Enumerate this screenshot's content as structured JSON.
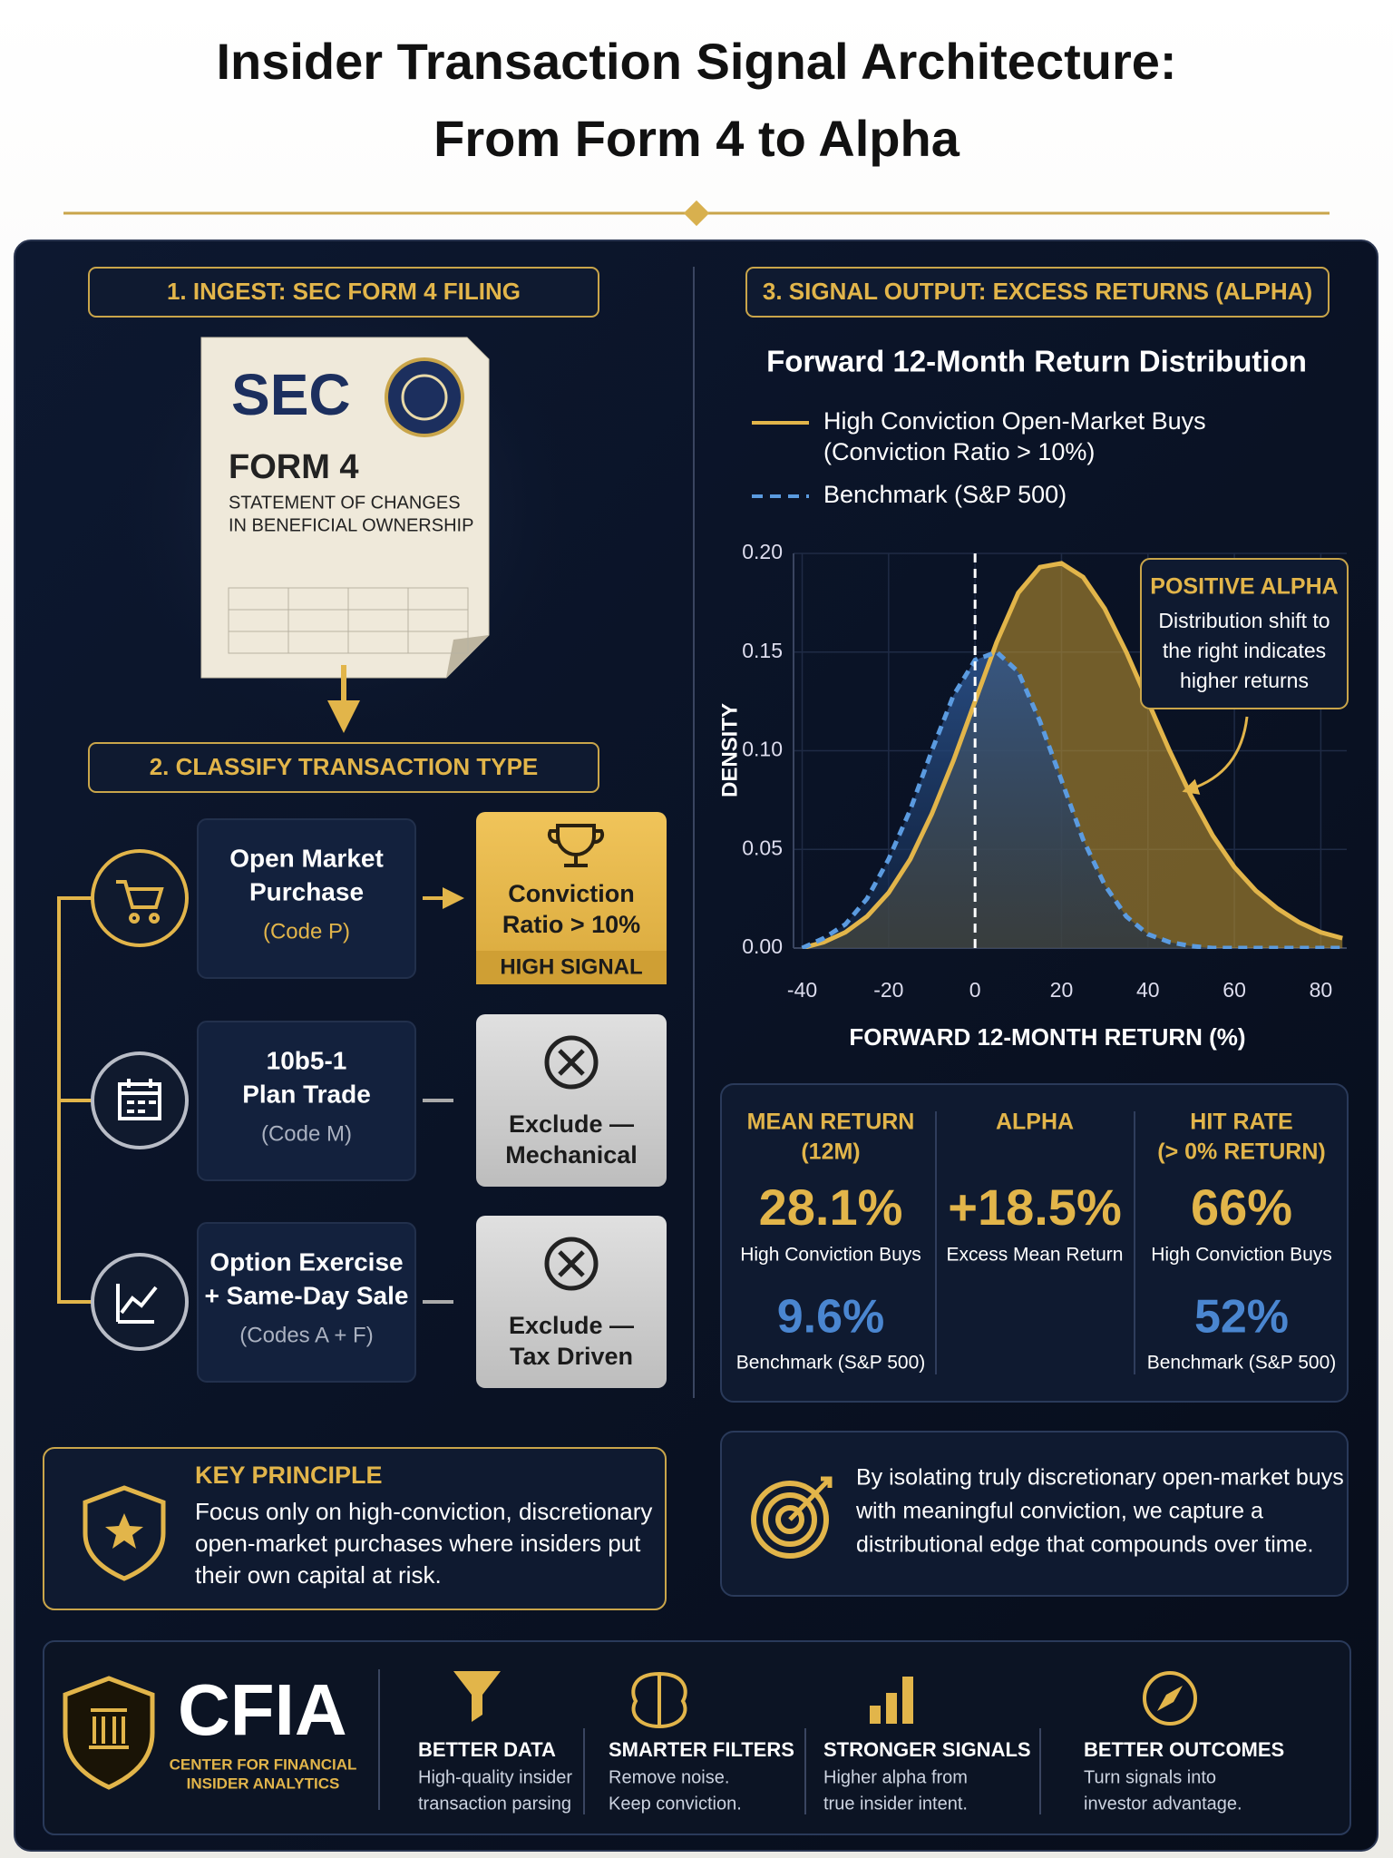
{
  "header": {
    "title": [
      "Insider Transaction Signal Architecture:",
      "From Form 4 to Alpha"
    ]
  },
  "ingest": {
    "heading": "1. INGEST: SEC FORM 4 FILING",
    "doc": {
      "agency": "SEC",
      "form": "FORM 4",
      "subtitle": [
        "STATEMENT OF CHANGES",
        "IN BENEFICIAL OWNERSHIP"
      ]
    }
  },
  "classify": {
    "heading": "2. CLASSIFY TRANSACTION TYPE",
    "rows": [
      {
        "name": [
          "Open Market",
          "Purchase"
        ],
        "code": "(Code P)",
        "result": [
          "Conviction",
          "Ratio > 10%"
        ],
        "tag": "HIGH SIGNAL"
      },
      {
        "name": [
          "10b5-1",
          "Plan Trade"
        ],
        "code": "(Code M)",
        "result": [
          "Exclude —",
          "Mechanical"
        ]
      },
      {
        "name": [
          "Option Exercise",
          "+ Same-Day Sale"
        ],
        "code": "(Codes A + F)",
        "result": [
          "Exclude —",
          "Tax Driven"
        ]
      }
    ]
  },
  "principle": {
    "title": "KEY PRINCIPLE",
    "text": [
      "Focus only on high-conviction, discretionary",
      "open-market purchases where insiders put",
      "their own capital at risk."
    ]
  },
  "output": {
    "heading": "3. SIGNAL OUTPUT: EXCESS RETURNS (ALPHA)"
  },
  "chart_data": {
    "type": "line",
    "title": "Forward 12-Month Return Distribution",
    "x": [
      -40,
      -35,
      -30,
      -25,
      -20,
      -15,
      -10,
      -5,
      0,
      5,
      10,
      15,
      20,
      25,
      30,
      35,
      40,
      45,
      50,
      55,
      60,
      65,
      70,
      75,
      80,
      85
    ],
    "series": [
      {
        "name": "High Conviction Open-Market Buys",
        "note": "(Conviction Ratio > 10%)",
        "color": "#e2b54a",
        "style": "solid",
        "values": [
          0.0,
          0.003,
          0.008,
          0.016,
          0.028,
          0.045,
          0.068,
          0.095,
          0.125,
          0.155,
          0.18,
          0.193,
          0.195,
          0.188,
          0.172,
          0.15,
          0.125,
          0.1,
          0.077,
          0.057,
          0.041,
          0.029,
          0.02,
          0.013,
          0.008,
          0.005
        ]
      },
      {
        "name": "Benchmark (S&P 500)",
        "color": "#5b9be0",
        "style": "dashed",
        "values": [
          0.0,
          0.005,
          0.012,
          0.025,
          0.045,
          0.07,
          0.1,
          0.128,
          0.146,
          0.15,
          0.14,
          0.115,
          0.085,
          0.055,
          0.032,
          0.016,
          0.007,
          0.003,
          0.001,
          0.0,
          0.0,
          0.0,
          0.0,
          0.0,
          0.0,
          0.0
        ]
      }
    ],
    "xlim": [
      -42,
      86
    ],
    "ylim": [
      0,
      0.2
    ],
    "xticks": [
      -40,
      -20,
      0,
      20,
      40,
      60,
      80
    ],
    "yticks": [
      {
        "value": 0,
        "label": "0.00"
      },
      {
        "value": 0.05,
        "label": "0.05"
      },
      {
        "value": 0.1,
        "label": "0.10"
      },
      {
        "value": 0.15,
        "label": "0.15"
      },
      {
        "value": 0.2,
        "label": "0.20"
      }
    ],
    "xlabel": "FORWARD 12-MONTH RETURN (%)",
    "ylabel": "DENSITY",
    "vline": 0,
    "grid": true,
    "annotation": {
      "title": "POSITIVE ALPHA",
      "text": [
        "Distribution shift to",
        "the right indicates",
        "higher returns"
      ]
    }
  },
  "stats": [
    {
      "header": [
        "MEAN RETURN",
        "(12M)"
      ],
      "value": "28.1%",
      "label": "High Conviction Buys",
      "bench_value": "9.6%",
      "bench_label": "Benchmark (S&P 500)"
    },
    {
      "header": [
        "ALPHA"
      ],
      "value": "+18.5%",
      "label": "Excess Mean Return"
    },
    {
      "header": [
        "HIT RATE",
        "(> 0% RETURN)"
      ],
      "value": "66%",
      "label": "High Conviction Buys",
      "bench_value": "52%",
      "bench_label": "Benchmark (S&P 500)"
    }
  ],
  "conclusion": [
    "By isolating truly discretionary open-market buys",
    "with meaningful conviction, we capture a",
    "distributional edge that compounds over time."
  ],
  "footer": {
    "brand": "CFIA",
    "brand_full": [
      "CENTER FOR FINANCIAL",
      "INSIDER ANALYTICS"
    ],
    "features": [
      {
        "title": "BETTER DATA",
        "text": [
          "High-quality insider",
          "transaction parsing"
        ]
      },
      {
        "title": "SMARTER FILTERS",
        "text": [
          "Remove noise.",
          "Keep conviction."
        ]
      },
      {
        "title": "STRONGER SIGNALS",
        "text": [
          "Higher alpha from",
          "true insider intent."
        ]
      },
      {
        "title": "BETTER OUTCOMES",
        "text": [
          "Turn signals into",
          "investor advantage."
        ]
      }
    ]
  }
}
